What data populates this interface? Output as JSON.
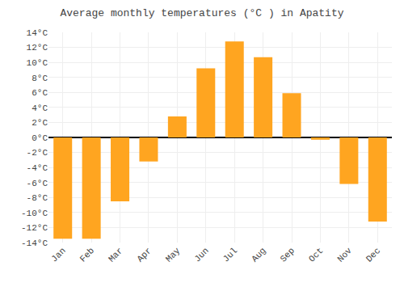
{
  "chart_data": {
    "type": "bar",
    "title": "Average monthly temperatures (°C ) in Apatity",
    "categories": [
      "Jan",
      "Feb",
      "Mar",
      "Apr",
      "May",
      "Jun",
      "Jul",
      "Aug",
      "Sep",
      "Oct",
      "Nov",
      "Dec"
    ],
    "values": [
      -13.5,
      -13.5,
      -8.5,
      -3.2,
      2.8,
      9.2,
      12.8,
      10.7,
      5.9,
      -0.3,
      -6.2,
      -11.2
    ],
    "color": "#FFA520",
    "ylim": [
      -14,
      14
    ],
    "yticks": [
      {
        "value": -14,
        "label": "-14°C"
      },
      {
        "value": -12,
        "label": "-12°C"
      },
      {
        "value": -10,
        "label": "-10°C"
      },
      {
        "value": -8,
        "label": "-8°C"
      },
      {
        "value": -6,
        "label": "-6°C"
      },
      {
        "value": -4,
        "label": "-4°C"
      },
      {
        "value": -2,
        "label": "-2°C"
      },
      {
        "value": 0,
        "label": "0°C"
      },
      {
        "value": 2,
        "label": "2°C"
      },
      {
        "value": 4,
        "label": "4°C"
      },
      {
        "value": 6,
        "label": "6°C"
      },
      {
        "value": 8,
        "label": "8°C"
      },
      {
        "value": 10,
        "label": "10°C"
      },
      {
        "value": 12,
        "label": "12°C"
      },
      {
        "value": 14,
        "label": "14°C"
      }
    ],
    "grid": true
  }
}
